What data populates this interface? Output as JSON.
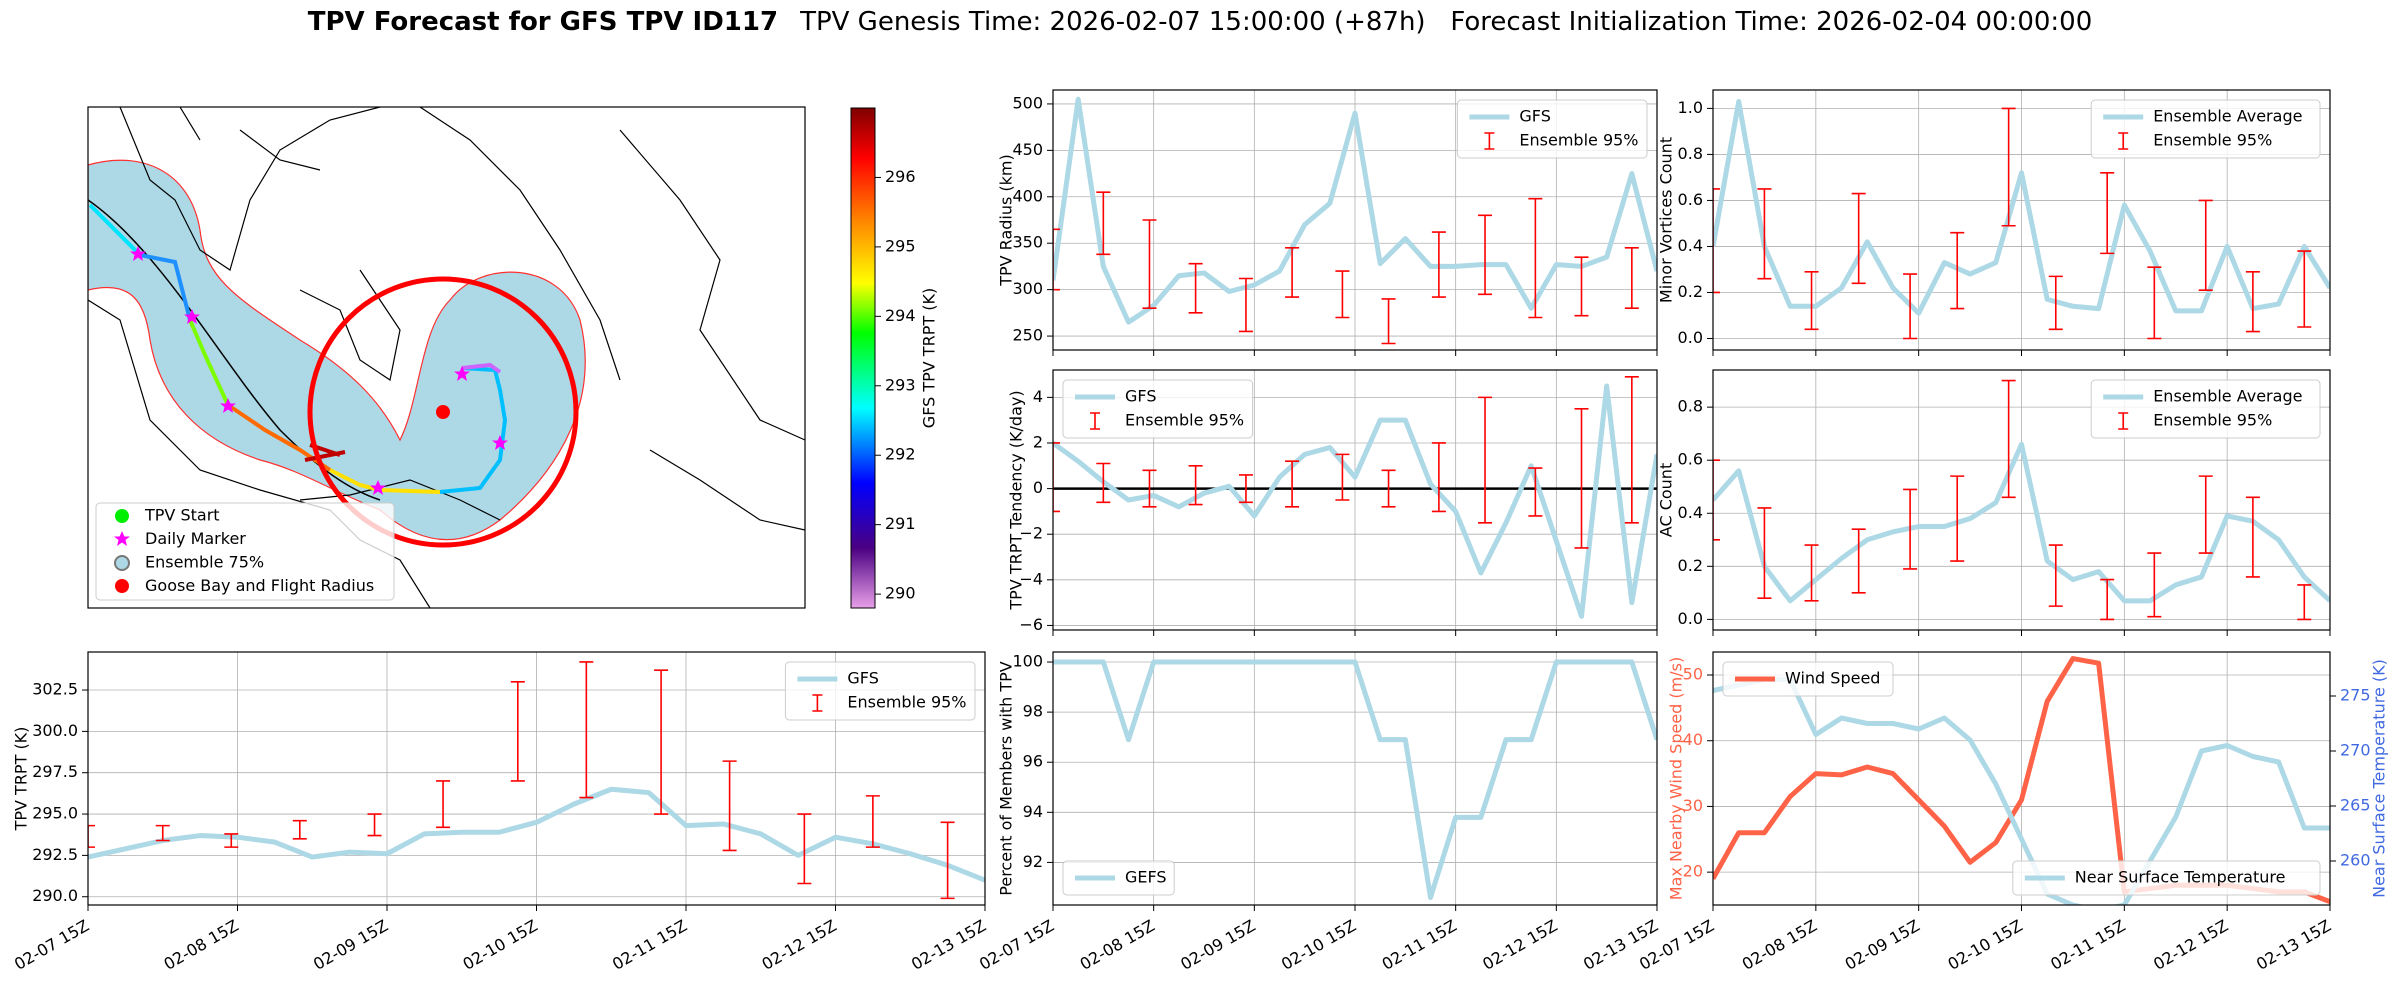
{
  "title": "TPV Forecast for GFS TPV ID117",
  "subtitle": "TPV Genesis Time: 2026-02-07 15:00:00 (+87h)   Forecast Initialization Time: 2026-02-04 00:00:00",
  "chart_data": [
    {
      "type": "map",
      "legend_labels": [
        "TPV Start",
        "Daily Marker",
        "Ensemble 75%",
        "Goose Bay and Flight Radius"
      ],
      "ylim": [
        289.8,
        297
      ],
      "yticks": [
        290,
        291,
        292,
        293,
        294,
        295,
        296
      ],
      "ylabel": "GFS TPV TRPT (K)"
    },
    {
      "type": "line",
      "ylabel": "TPV Radius (km)",
      "grid": true,
      "legend": "upper right",
      "xlim": [
        0,
        144
      ],
      "xticks": [
        0,
        24,
        48,
        72,
        96,
        120,
        144
      ],
      "ylim": [
        235,
        515
      ],
      "yticks": [
        250,
        300,
        350,
        400,
        450,
        500
      ],
      "x": [
        0,
        6,
        12,
        18,
        24,
        30,
        36,
        42,
        48,
        54,
        60,
        66,
        72,
        78,
        84,
        90,
        96,
        102,
        108,
        114,
        120,
        126,
        132,
        138,
        144
      ],
      "series": [
        {
          "name": "GFS",
          "color": "#add8e6",
          "values": [
            310,
            505,
            325,
            265,
            283,
            315,
            318,
            298,
            305,
            320,
            370,
            393,
            490,
            328,
            355,
            325,
            325,
            327,
            327,
            280,
            327,
            325,
            335,
            425,
            320
          ]
        },
        {
          "name": "Ensemble 95%",
          "color": "#ff0000",
          "style": "errorbar",
          "x": [
            0,
            12,
            23,
            34,
            46,
            57,
            69,
            80,
            92,
            103,
            115,
            126,
            138
          ],
          "low": [
            300,
            338,
            280,
            275,
            255,
            292,
            270,
            242,
            292,
            295,
            270,
            272,
            280
          ],
          "high": [
            365,
            405,
            375,
            328,
            312,
            345,
            320,
            290,
            362,
            380,
            398,
            335,
            345
          ]
        }
      ]
    },
    {
      "type": "line",
      "ylabel": "Minor Vortices Count",
      "grid": true,
      "legend": "upper right",
      "xlim": [
        0,
        144
      ],
      "xticks": [
        0,
        24,
        48,
        72,
        96,
        120,
        144
      ],
      "ylim": [
        -0.05,
        1.08
      ],
      "yticks": [
        {
          "value": 0,
          "label": "0.0"
        },
        0.2,
        0.4,
        0.6,
        0.8,
        {
          "value": 1,
          "label": "1.0"
        }
      ],
      "x": [
        0,
        6,
        12,
        18,
        24,
        30,
        36,
        42,
        48,
        54,
        60,
        66,
        72,
        78,
        84,
        90,
        96,
        102,
        108,
        114,
        120,
        126,
        132,
        138,
        144
      ],
      "series": [
        {
          "name": "Ensemble Average",
          "color": "#add8e6",
          "values": [
            0.4,
            1.03,
            0.4,
            0.14,
            0.14,
            0.22,
            0.42,
            0.22,
            0.11,
            0.33,
            0.28,
            0.33,
            0.72,
            0.17,
            0.14,
            0.13,
            0.58,
            0.38,
            0.12,
            0.12,
            0.4,
            0.13,
            0.15,
            0.4,
            0.22
          ]
        },
        {
          "name": "Ensemble 95%",
          "color": "#ff0000",
          "style": "errorbar",
          "x": [
            0,
            12,
            23,
            34,
            46,
            57,
            69,
            80,
            92,
            103,
            115,
            126,
            138
          ],
          "low": [
            0.2,
            0.26,
            0.04,
            0.24,
            0.0,
            0.13,
            0.49,
            0.04,
            0.37,
            0.0,
            0.21,
            0.03,
            0.05
          ],
          "high": [
            0.65,
            0.65,
            0.29,
            0.63,
            0.28,
            0.46,
            1.0,
            0.27,
            0.72,
            0.31,
            0.6,
            0.29,
            0.38
          ]
        }
      ]
    },
    {
      "type": "line",
      "ylabel": "TPV TRPT Tendency (K/day)",
      "grid": true,
      "legend": "upper left",
      "hline": 0,
      "xlim": [
        0,
        144
      ],
      "xticks": [
        0,
        24,
        48,
        72,
        96,
        120,
        144
      ],
      "ylim": [
        -6.2,
        5.2
      ],
      "yticks": [
        {
          "value": -6,
          "label": "−6"
        },
        {
          "value": -4,
          "label": "−4"
        },
        {
          "value": -2,
          "label": "−2"
        },
        0,
        2,
        4
      ],
      "x": [
        0,
        6,
        12,
        18,
        24,
        30,
        36,
        42,
        48,
        54,
        60,
        66,
        72,
        78,
        84,
        90,
        96,
        102,
        108,
        114,
        120,
        126,
        132,
        138,
        144
      ],
      "series": [
        {
          "name": "GFS",
          "color": "#add8e6",
          "values": [
            2,
            1.2,
            0.3,
            -0.5,
            -0.3,
            -0.8,
            -0.2,
            0.1,
            -1.2,
            0.5,
            1.5,
            1.8,
            0.5,
            3,
            3,
            0.2,
            -1,
            -3.7,
            -1.5,
            1,
            -2.3,
            -5.6,
            4.5,
            -5,
            1.5
          ]
        },
        {
          "name": "Ensemble 95%",
          "color": "#ff0000",
          "style": "errorbar",
          "x": [
            0,
            12,
            23,
            34,
            46,
            57,
            69,
            80,
            92,
            103,
            115,
            126,
            138
          ],
          "low": [
            -1,
            -0.6,
            -0.8,
            -0.7,
            -0.6,
            -0.8,
            -0.5,
            -0.8,
            -1,
            -1.5,
            -1.2,
            -2.6,
            -1.5
          ],
          "high": [
            2,
            1.1,
            0.8,
            1,
            0.6,
            1.2,
            1.5,
            0.8,
            2,
            4,
            0.9,
            3.5,
            4.9
          ]
        }
      ]
    },
    {
      "type": "line",
      "ylabel": "AC Count",
      "grid": true,
      "legend": "upper right",
      "xlim": [
        0,
        144
      ],
      "xticks": [
        0,
        24,
        48,
        72,
        96,
        120,
        144
      ],
      "ylim": [
        -0.04,
        0.94
      ],
      "yticks": [
        {
          "value": 0,
          "label": "0.0"
        },
        0.2,
        0.4,
        0.6,
        0.8
      ],
      "x": [
        0,
        6,
        12,
        18,
        24,
        30,
        36,
        42,
        48,
        54,
        60,
        66,
        72,
        78,
        84,
        90,
        96,
        102,
        108,
        114,
        120,
        126,
        132,
        138,
        144
      ],
      "series": [
        {
          "name": "Ensemble Average",
          "color": "#add8e6",
          "values": [
            0.45,
            0.56,
            0.2,
            0.07,
            0.15,
            0.23,
            0.3,
            0.33,
            0.35,
            0.35,
            0.38,
            0.44,
            0.66,
            0.22,
            0.15,
            0.18,
            0.07,
            0.07,
            0.13,
            0.16,
            0.39,
            0.37,
            0.3,
            0.16,
            0.07
          ]
        },
        {
          "name": "Ensemble 95%",
          "color": "#ff0000",
          "style": "errorbar",
          "x": [
            0,
            12,
            23,
            34,
            46,
            57,
            69,
            80,
            92,
            103,
            115,
            126,
            138
          ],
          "low": [
            0.3,
            0.08,
            0.07,
            0.1,
            0.19,
            0.22,
            0.46,
            0.05,
            0.0,
            0.01,
            0.25,
            0.16,
            0.0
          ],
          "high": [
            0.6,
            0.42,
            0.28,
            0.34,
            0.49,
            0.54,
            0.9,
            0.28,
            0.15,
            0.25,
            0.54,
            0.46,
            0.13
          ]
        }
      ]
    },
    {
      "type": "line",
      "ylabel": "TPV TRPT (K)",
      "grid": true,
      "legend": "upper right",
      "xlim": [
        0,
        144
      ],
      "xticks": [
        {
          "value": 0,
          "label": "02-07 15Z"
        },
        {
          "value": 24,
          "label": "02-08 15Z"
        },
        {
          "value": 48,
          "label": "02-09 15Z"
        },
        {
          "value": 72,
          "label": "02-10 15Z"
        },
        {
          "value": 96,
          "label": "02-11 15Z"
        },
        {
          "value": 120,
          "label": "02-12 15Z"
        },
        {
          "value": 144,
          "label": "02-13 15Z"
        }
      ],
      "ylim": [
        289.5,
        304.8
      ],
      "yticks": [
        {
          "value": 290,
          "label": "290.0"
        },
        292.5,
        {
          "value": 295,
          "label": "295.0"
        },
        297.5,
        {
          "value": 300,
          "label": "300.0"
        },
        302.5
      ],
      "x": [
        0,
        6,
        12,
        18,
        24,
        30,
        36,
        42,
        48,
        54,
        60,
        66,
        72,
        78,
        84,
        90,
        96,
        102,
        108,
        114,
        120,
        126,
        132,
        138,
        144
      ],
      "series": [
        {
          "name": "GFS",
          "color": "#add8e6",
          "values": [
            292.4,
            292.9,
            293.4,
            293.7,
            293.6,
            293.3,
            292.4,
            292.7,
            292.6,
            293.8,
            293.9,
            293.9,
            294.5,
            295.6,
            296.5,
            296.3,
            294.3,
            294.4,
            293.8,
            292.5,
            293.6,
            293.2,
            292.6,
            291.9,
            291.0
          ]
        },
        {
          "name": "Ensemble 95%",
          "color": "#ff0000",
          "style": "errorbar",
          "x": [
            0,
            12,
            23,
            34,
            46,
            57,
            69,
            80,
            92,
            103,
            115,
            126,
            138
          ],
          "low": [
            293,
            293.4,
            293,
            293.5,
            293.7,
            294.2,
            297,
            296,
            295,
            292.8,
            290.8,
            293,
            289.9
          ],
          "high": [
            294.3,
            294.3,
            293.8,
            294.6,
            295,
            297,
            303,
            304.2,
            303.7,
            298.2,
            295,
            296.1,
            294.5
          ]
        }
      ]
    },
    {
      "type": "line",
      "ylabel": "Percent of Members with TPV",
      "grid": true,
      "legend": "lower left",
      "xlim": [
        0,
        144
      ],
      "xticks": [
        {
          "value": 0,
          "label": "02-07 15Z"
        },
        {
          "value": 24,
          "label": "02-08 15Z"
        },
        {
          "value": 48,
          "label": "02-09 15Z"
        },
        {
          "value": 72,
          "label": "02-10 15Z"
        },
        {
          "value": 96,
          "label": "02-11 15Z"
        },
        {
          "value": 120,
          "label": "02-12 15Z"
        },
        {
          "value": 144,
          "label": "02-13 15Z"
        }
      ],
      "ylim": [
        90.3,
        100.4
      ],
      "yticks": [
        92,
        94,
        96,
        98,
        100
      ],
      "x": [
        0,
        6,
        12,
        18,
        24,
        30,
        36,
        42,
        48,
        54,
        60,
        66,
        72,
        78,
        84,
        90,
        96,
        102,
        108,
        114,
        120,
        126,
        132,
        138,
        144
      ],
      "series": [
        {
          "name": "GEFS",
          "color": "#add8e6",
          "values": [
            100,
            100,
            100,
            96.9,
            100,
            100,
            100,
            100,
            100,
            100,
            100,
            100,
            100,
            96.9,
            96.9,
            90.6,
            93.8,
            93.8,
            96.9,
            96.9,
            100,
            100,
            100,
            100,
            96.9
          ]
        }
      ]
    },
    {
      "type": "line",
      "ylabel": "Max Nearby Wind Speed (m/s)",
      "ylabel_color": "#ff6347",
      "y2label": "Near Surface Temperature (K)",
      "y2label_color": "#4169e1",
      "grid": true,
      "legend": "upper left",
      "legend2": "lower right",
      "xlim": [
        0,
        144
      ],
      "xticks": [
        {
          "value": 0,
          "label": "02-07 15Z"
        },
        {
          "value": 24,
          "label": "02-08 15Z"
        },
        {
          "value": 48,
          "label": "02-09 15Z"
        },
        {
          "value": 72,
          "label": "02-10 15Z"
        },
        {
          "value": 96,
          "label": "02-11 15Z"
        },
        {
          "value": 120,
          "label": "02-12 15Z"
        },
        {
          "value": 144,
          "label": "02-13 15Z"
        }
      ],
      "ylim": [
        15,
        53.5
      ],
      "yticks": [
        20,
        30,
        40,
        50
      ],
      "y2lim": [
        256,
        279
      ],
      "y2ticks": [
        260,
        265,
        270,
        275
      ],
      "x": [
        0,
        6,
        12,
        18,
        24,
        30,
        36,
        42,
        48,
        54,
        60,
        66,
        72,
        78,
        84,
        90,
        96,
        102,
        108,
        114,
        120,
        126,
        132,
        138,
        144
      ],
      "series": [
        {
          "name": "Wind Speed",
          "color": "#ff6347",
          "values": [
            19,
            26,
            26,
            31.5,
            35,
            34.8,
            36,
            35,
            31,
            27,
            21.5,
            24.5,
            31,
            46,
            52.5,
            51.8,
            17,
            17.5,
            18,
            18,
            18,
            17.5,
            17,
            17,
            15.5
          ]
        },
        {
          "name": "Near Surface Temperature",
          "color": "#add8e6",
          "axis": "y2",
          "values": [
            275.5,
            276,
            276.5,
            276.5,
            271.5,
            273,
            272.5,
            272.5,
            272,
            273,
            271,
            267,
            262,
            257,
            256,
            255.5,
            256,
            260,
            264,
            270,
            270.5,
            269.5,
            269,
            263,
            263
          ]
        }
      ]
    }
  ]
}
